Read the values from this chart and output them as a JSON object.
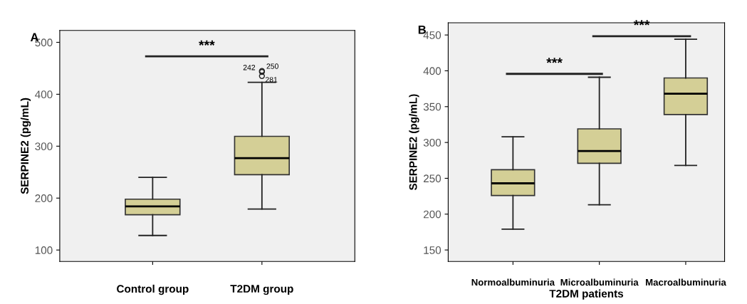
{
  "chart_data": [
    {
      "type": "box",
      "title": "A",
      "ylabel": "SERPINE2 (pg/mL)",
      "categories": [
        "Control group",
        "T2DM group"
      ],
      "color": "#d4cf96",
      "boxes": [
        {
          "low": 128,
          "q1": 168,
          "median": 184,
          "q3": 198,
          "high": 240
        },
        {
          "low": 179,
          "q1": 245,
          "median": 277,
          "q3": 319,
          "high": 423,
          "outliers": [
            445,
            443,
            435
          ]
        }
      ],
      "ylim": [
        78,
        523
      ],
      "yticks": [
        100,
        200,
        300,
        400,
        500
      ],
      "grid": false,
      "annotations": [
        "***",
        "242",
        "250",
        "281"
      ]
    },
    {
      "type": "box",
      "title": "B",
      "ylabel": "SERPINE2 (pg/mL)",
      "xlabel": "T2DM patients",
      "categories": [
        "Normoalbuminuria",
        "Microalbuminuria",
        "Macroalbuminuria"
      ],
      "color": "#d4cf96",
      "boxes": [
        {
          "low": 179,
          "q1": 226,
          "median": 243,
          "q3": 262,
          "high": 308
        },
        {
          "low": 213,
          "q1": 271,
          "median": 288,
          "q3": 319,
          "high": 391
        },
        {
          "low": 268,
          "q1": 339,
          "median": 368,
          "q3": 390,
          "high": 444
        }
      ],
      "ylim": [
        134,
        467
      ],
      "yticks": [
        150,
        200,
        250,
        300,
        350,
        400,
        450
      ],
      "grid": false,
      "annotations": [
        "***",
        "***"
      ]
    }
  ]
}
